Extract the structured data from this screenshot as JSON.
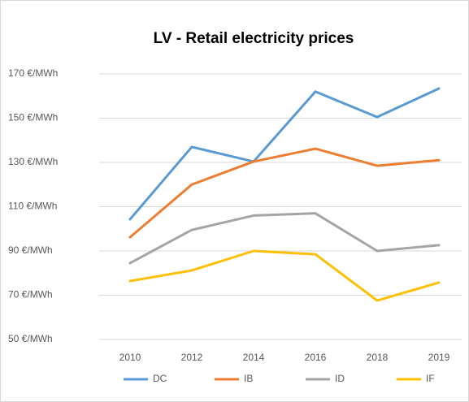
{
  "chart_data": {
    "type": "line",
    "title": "LV - Retail electricity prices",
    "categories": [
      "2010",
      "2012",
      "2014",
      "2016",
      "2018",
      "2019"
    ],
    "series": [
      {
        "name": "DC",
        "color": "#5b9bd5",
        "values": [
          104.3,
          137,
          130.4,
          162,
          150.5,
          163.4
        ]
      },
      {
        "name": "IB",
        "color": "#ed7d31",
        "values": [
          96.2,
          120,
          130.4,
          136.2,
          128.5,
          131
        ]
      },
      {
        "name": "ID",
        "color": "#a5a5a5",
        "values": [
          84.5,
          99.5,
          106,
          107,
          90,
          92.6
        ]
      },
      {
        "name": "IF",
        "color": "#ffc000",
        "values": [
          76.4,
          81.2,
          90,
          88.5,
          67.6,
          75.7
        ]
      }
    ],
    "ylim": [
      50,
      170
    ],
    "yticks": [
      {
        "value": 50,
        "label": "50 €/MWh"
      },
      {
        "value": 70,
        "label": "70 €/MWh"
      },
      {
        "value": 90,
        "label": "90 €/MWh"
      },
      {
        "value": 110,
        "label": "110 €/MWh"
      },
      {
        "value": 130,
        "label": "130 €/MWh"
      },
      {
        "value": 150,
        "label": "150 €/MWh"
      },
      {
        "value": 170,
        "label": "170 €/MWh"
      }
    ],
    "grid": true,
    "legend": "bottom"
  }
}
